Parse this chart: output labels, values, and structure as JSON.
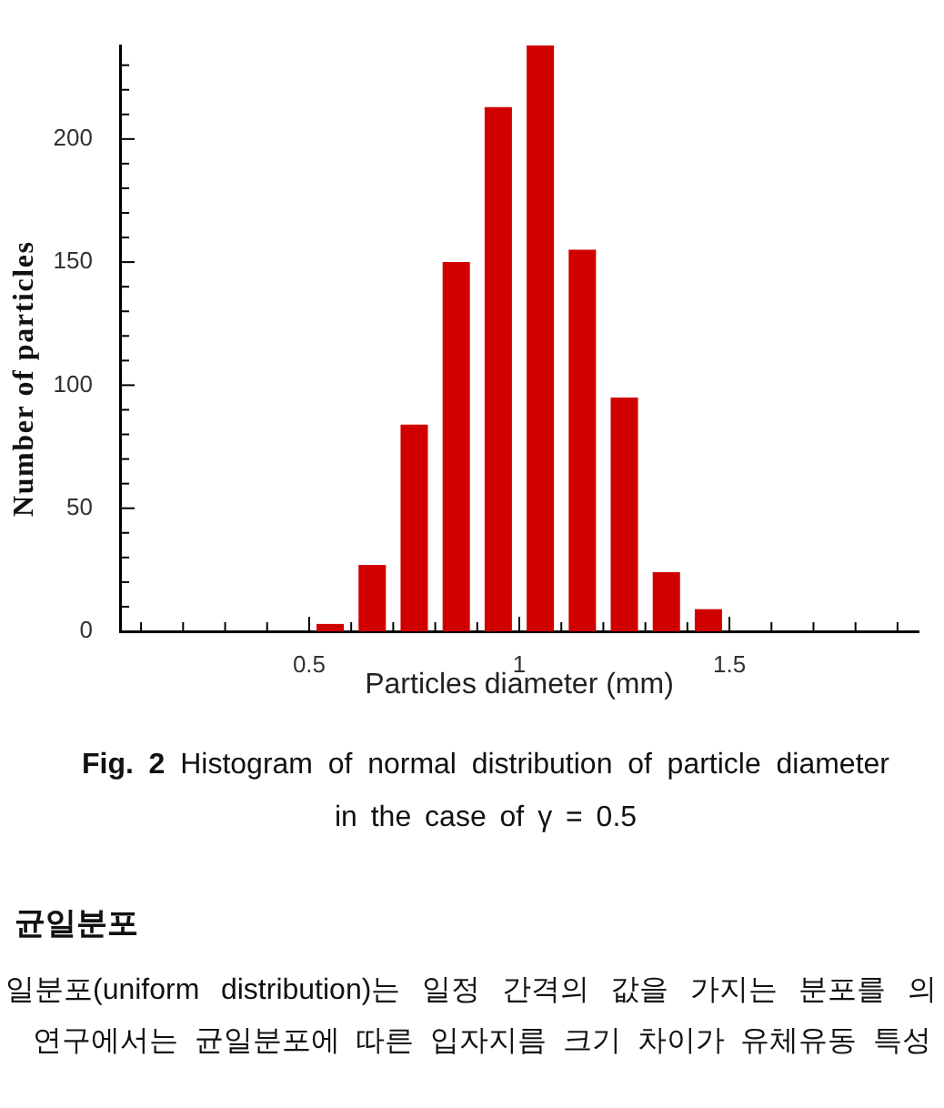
{
  "chart_data": {
    "type": "histogram",
    "title": "Fig. 2 Histogram of normal distribution of particle diameter in the case of γ = 0.5",
    "xlabel": "Particles diameter (mm)",
    "ylabel": "Number of particles",
    "bins": [
      0.5,
      0.6,
      0.7,
      0.8,
      0.9,
      1,
      1.1,
      1.2,
      1.3,
      1.4,
      1.5
    ],
    "values": [
      3,
      27,
      84,
      150,
      213,
      238,
      155,
      95,
      24,
      9
    ],
    "color": "#d00000",
    "xlim": [
      0.05,
      1.95
    ],
    "ylim": [
      0,
      238
    ],
    "xticks": [
      {
        "value": 0.1,
        "label": null
      },
      {
        "value": 0.2,
        "label": null
      },
      {
        "value": 0.3,
        "label": null
      },
      {
        "value": 0.4,
        "label": null
      },
      0.5,
      {
        "value": 0.6,
        "label": null
      },
      {
        "value": 0.7,
        "label": null
      },
      {
        "value": 0.8,
        "label": null
      },
      {
        "value": 0.9,
        "label": null
      },
      1,
      {
        "value": 1.1,
        "label": null
      },
      {
        "value": 1.2,
        "label": null
      },
      {
        "value": 1.3,
        "label": null
      },
      {
        "value": 1.4,
        "label": null
      },
      1.5,
      {
        "value": 1.6,
        "label": null
      },
      {
        "value": 1.7,
        "label": null
      },
      {
        "value": 1.8,
        "label": null
      },
      {
        "value": 1.9,
        "label": null
      }
    ],
    "yticks": [
      0,
      {
        "value": 10,
        "label": null
      },
      {
        "value": 20,
        "label": null
      },
      {
        "value": 30,
        "label": null
      },
      {
        "value": 40,
        "label": null
      },
      50,
      {
        "value": 60,
        "label": null
      },
      {
        "value": 70,
        "label": null
      },
      {
        "value": 80,
        "label": null
      },
      {
        "value": 90,
        "label": null
      },
      100,
      {
        "value": 110,
        "label": null
      },
      {
        "value": 120,
        "label": null
      },
      {
        "value": 130,
        "label": null
      },
      {
        "value": 140,
        "label": null
      },
      150,
      {
        "value": 160,
        "label": null
      },
      {
        "value": 170,
        "label": null
      },
      {
        "value": 180,
        "label": null
      },
      {
        "value": 190,
        "label": null
      },
      200,
      {
        "value": 210,
        "label": null
      },
      {
        "value": 220,
        "label": null
      },
      {
        "value": 230,
        "label": null
      }
    ],
    "annotations": [
      "균일분포",
      "일분포(uniform distribution)는 일정 간격의 값을 가지는 분포를 의",
      "연구에서는 균일분포에 따른 입자지름 크기 차이가 유체유동 특성"
    ]
  }
}
